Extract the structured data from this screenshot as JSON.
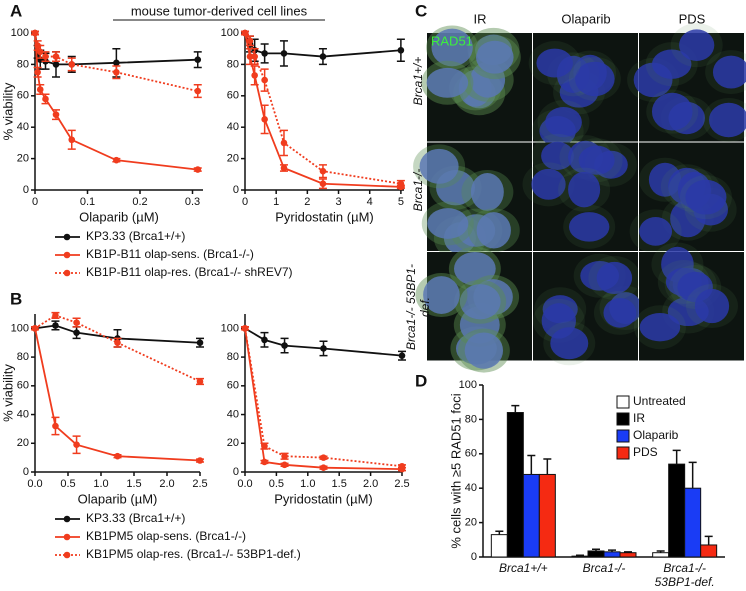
{
  "title": "mouse tumor-derived cell lines",
  "panel_labels": [
    "A",
    "B",
    "C",
    "D"
  ],
  "images": {
    "stain": "RAD51",
    "columns": [
      "IR",
      "Olaparib",
      "PDS"
    ],
    "rows": [
      "Brca1+/+",
      "Brca1-/-",
      "Brca1-/- 53BP1-def."
    ]
  },
  "chart_data": [
    {
      "type": "line",
      "x_label": "Olaparib (µM)",
      "y_label": "% viability",
      "x": [
        0,
        0.005,
        0.01,
        0.02,
        0.04,
        0.07,
        0.155,
        0.31
      ],
      "xlim": [
        0,
        0.32
      ],
      "xticks": [
        0,
        0.1,
        0.2,
        0.3
      ],
      "ylim": [
        0,
        100
      ],
      "yticks": [
        0,
        20,
        40,
        60,
        80,
        100
      ],
      "series": [
        {
          "name": "KP3.33 (Brca1+/+)",
          "color": "#111111",
          "dashed": false,
          "values": [
            100,
            88,
            83,
            82,
            80,
            80,
            81,
            83
          ],
          "errors": [
            1,
            4,
            6,
            5,
            8,
            5,
            9,
            5
          ]
        },
        {
          "name": "KB1P-B11 olap-sens. (Brca1-/-)",
          "color": "#f03c1e",
          "dashed": false,
          "values": [
            100,
            75,
            64,
            58,
            48,
            32,
            19,
            13
          ],
          "errors": [
            1,
            3,
            3,
            3,
            3,
            6,
            1,
            1
          ]
        },
        {
          "name": "KB1P-B11 olap-res. (Brca1-/- shREV7)",
          "color": "#f03c1e",
          "dashed": true,
          "values": [
            100,
            92,
            88,
            85,
            85,
            80,
            75,
            63
          ],
          "errors": [
            1,
            3,
            4,
            3,
            3,
            4,
            4,
            4
          ]
        }
      ]
    },
    {
      "type": "line",
      "x_label": "Pyridostatin (µM)",
      "x": [
        0,
        0.16,
        0.31,
        0.63,
        1.25,
        2.5,
        5
      ],
      "xlim": [
        0,
        5.1
      ],
      "xticks": [
        0,
        1,
        2,
        3,
        4,
        5
      ],
      "ylim": [
        0,
        100
      ],
      "yticks": [
        0,
        20,
        40,
        60,
        80,
        100
      ],
      "series": [
        {
          "color": "#111111",
          "dashed": false,
          "values": [
            100,
            93,
            89,
            87,
            87,
            85,
            89
          ],
          "errors": [
            1,
            5,
            7,
            6,
            8,
            5,
            7
          ]
        },
        {
          "color": "#f03c1e",
          "dashed": false,
          "values": [
            100,
            85,
            73,
            45,
            14,
            4,
            2
          ],
          "errors": [
            1,
            5,
            6,
            9,
            2,
            3,
            1
          ]
        },
        {
          "color": "#f03c1e",
          "dashed": true,
          "values": [
            100,
            95,
            85,
            70,
            30,
            12,
            4
          ],
          "errors": [
            1,
            3,
            5,
            7,
            8,
            4,
            2
          ]
        }
      ]
    },
    {
      "type": "line",
      "x_label": "Olaparib (µM)",
      "y_label": "% viability",
      "x": [
        0,
        0.31,
        0.63,
        1.25,
        2.5
      ],
      "xlim": [
        0,
        2.5
      ],
      "xticks": [
        {
          "value": 0,
          "label": "0.0"
        },
        0.5,
        {
          "value": 1,
          "label": "1.0"
        },
        1.5,
        {
          "value": 2,
          "label": "2.0"
        },
        2.5
      ],
      "ylim": [
        0,
        110
      ],
      "yticks": [
        0,
        20,
        40,
        60,
        80,
        100
      ],
      "series": [
        {
          "name": "KP3.33 (Brca1+/+)",
          "color": "#111111",
          "dashed": false,
          "values": [
            100,
            102,
            97,
            93,
            90
          ],
          "errors": [
            1,
            3,
            4,
            6,
            3
          ]
        },
        {
          "name": "KB1PM5 olap-sens. (Brca1-/-)",
          "color": "#f03c1e",
          "dashed": false,
          "values": [
            100,
            32,
            19,
            11,
            8
          ],
          "errors": [
            1,
            6,
            6,
            1,
            1
          ]
        },
        {
          "name": "KB1PM5 olap-res. (Brca1-/- 53BP1-def.)",
          "color": "#f03c1e",
          "dashed": true,
          "values": [
            100,
            109,
            104,
            90,
            63
          ],
          "errors": [
            1,
            2,
            3,
            3,
            2
          ]
        }
      ]
    },
    {
      "type": "line",
      "x_label": "Pyridostatin (µM)",
      "x": [
        0,
        0.31,
        0.63,
        1.25,
        2.5
      ],
      "xlim": [
        0,
        2.5
      ],
      "xticks": [
        {
          "value": 0,
          "label": "0.0"
        },
        0.5,
        {
          "value": 1,
          "label": "1.0"
        },
        1.5,
        {
          "value": 2,
          "label": "2.0"
        },
        2.5
      ],
      "ylim": [
        0,
        110
      ],
      "yticks": [
        0,
        20,
        40,
        60,
        80,
        100
      ],
      "series": [
        {
          "color": "#111111",
          "dashed": false,
          "values": [
            100,
            92,
            88,
            86,
            81
          ],
          "errors": [
            1,
            5,
            5,
            5,
            3
          ]
        },
        {
          "color": "#f03c1e",
          "dashed": false,
          "values": [
            100,
            7,
            5,
            3,
            2
          ],
          "errors": [
            1,
            1,
            1,
            1,
            1
          ]
        },
        {
          "color": "#f03c1e",
          "dashed": true,
          "values": [
            100,
            18,
            11,
            10,
            4
          ],
          "errors": [
            1,
            2,
            2,
            1,
            1
          ]
        }
      ]
    },
    {
      "type": "bar",
      "y_label": "% cells with ≥5 RAD51 foci",
      "categories": [
        "Brca1+/+",
        "Brca1-/-",
        "Brca1-/- 53BP1-def."
      ],
      "ylim": [
        0,
        100
      ],
      "yticks": [
        0,
        20,
        40,
        60,
        80,
        100
      ],
      "series": [
        {
          "name": "Untreated",
          "color": "#ffffff",
          "values": [
            13,
            0.5,
            2.5
          ],
          "errors": [
            2,
            0.5,
            1
          ]
        },
        {
          "name": "IR",
          "color": "#000000",
          "values": [
            84,
            3.5,
            54
          ],
          "errors": [
            4,
            1,
            8
          ]
        },
        {
          "name": "Olaparib",
          "color": "#1a3cf5",
          "values": [
            48,
            3,
            40
          ],
          "errors": [
            11,
            1,
            15
          ]
        },
        {
          "name": "PDS",
          "color": "#f52a12",
          "values": [
            48,
            2.5,
            7
          ],
          "errors": [
            9,
            0.5,
            5
          ]
        }
      ]
    }
  ]
}
